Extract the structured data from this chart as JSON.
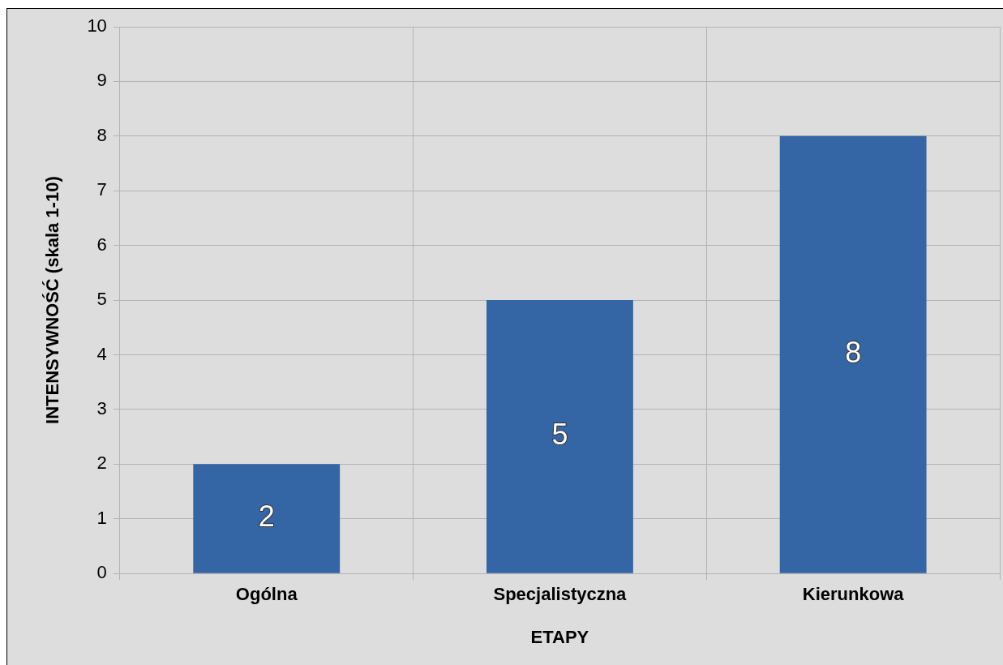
{
  "chart_data": {
    "type": "bar",
    "xlabel": "ETAPY",
    "ylabel": "INTENSYWNOŚĆ (skala 1-10)",
    "categories": [
      "Ogólna",
      "Specjalistyczna",
      "Kierunkowa"
    ],
    "values": [
      2,
      5,
      8
    ],
    "color": "#3465a4",
    "ylim": [
      0,
      10
    ],
    "yticks": [
      0,
      1,
      2,
      3,
      4,
      5,
      6,
      7,
      8,
      9,
      10
    ],
    "grid": true,
    "data_labels": true
  }
}
